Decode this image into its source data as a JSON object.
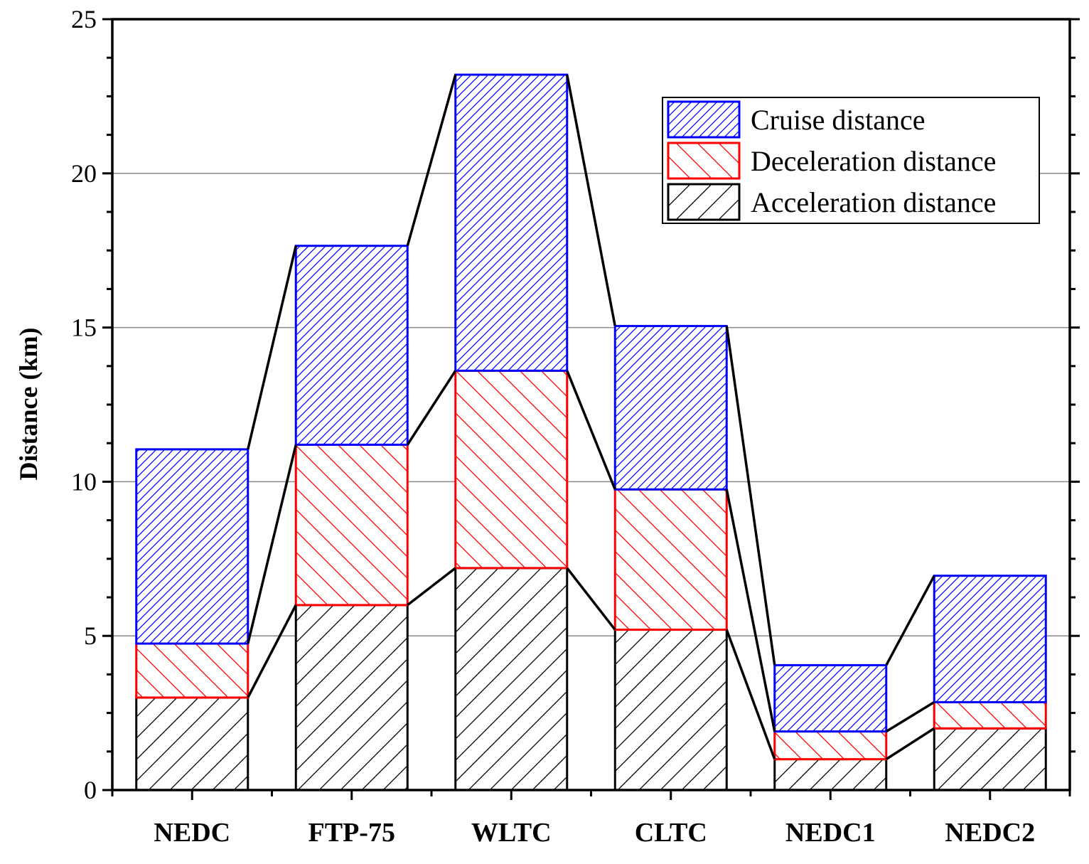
{
  "chart_data": {
    "type": "bar",
    "stacked": true,
    "categories": [
      "NEDC",
      "FTP-75",
      "WLTC",
      "CLTC",
      "NEDC1",
      "NEDC2"
    ],
    "series": [
      {
        "name": "Acceleration distance",
        "values": [
          3.0,
          6.0,
          7.2,
          5.2,
          1.0,
          2.0
        ],
        "color": "#000000",
        "hatch": "forward"
      },
      {
        "name": "Deceleration distance",
        "values": [
          1.75,
          5.2,
          6.4,
          4.55,
          0.9,
          0.85
        ],
        "color": "#ff0000",
        "hatch": "backward"
      },
      {
        "name": "Cruise distance",
        "values": [
          6.3,
          6.45,
          9.6,
          5.3,
          2.15,
          4.1
        ],
        "color": "#0000ff",
        "hatch": "forward-dense"
      }
    ],
    "legend_order": [
      "Cruise distance",
      "Deceleration distance",
      "Acceleration distance"
    ],
    "ylabel": "Distance (km)",
    "xlabel": "",
    "ylim": [
      0,
      25
    ],
    "yticks": [
      0,
      5,
      10,
      15,
      20,
      25
    ],
    "grid": true,
    "legend_position": "top-right",
    "connector_lines": true
  }
}
